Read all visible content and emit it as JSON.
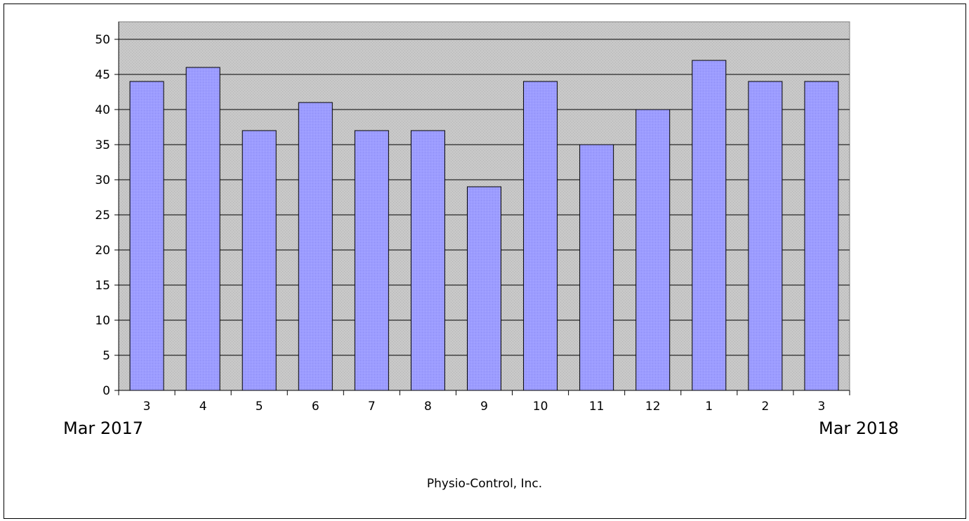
{
  "chart_data": {
    "type": "bar",
    "categories": [
      "3",
      "4",
      "5",
      "6",
      "7",
      "8",
      "9",
      "10",
      "11",
      "12",
      "1",
      "2",
      "3"
    ],
    "values": [
      44,
      46,
      37,
      41,
      37,
      37,
      29,
      44,
      35,
      40,
      47,
      44,
      44
    ],
    "ylim": [
      0,
      52
    ],
    "yticks": [
      0,
      5,
      10,
      15,
      20,
      25,
      30,
      35,
      40,
      45,
      50
    ],
    "grid": true,
    "colors": {
      "bar": "#9999ff",
      "plot_bg": "#c0c0c0",
      "grid": "#000000"
    }
  },
  "range_start": "Mar 2017",
  "range_end": "Mar 2018",
  "company": "Physio-Control, Inc."
}
